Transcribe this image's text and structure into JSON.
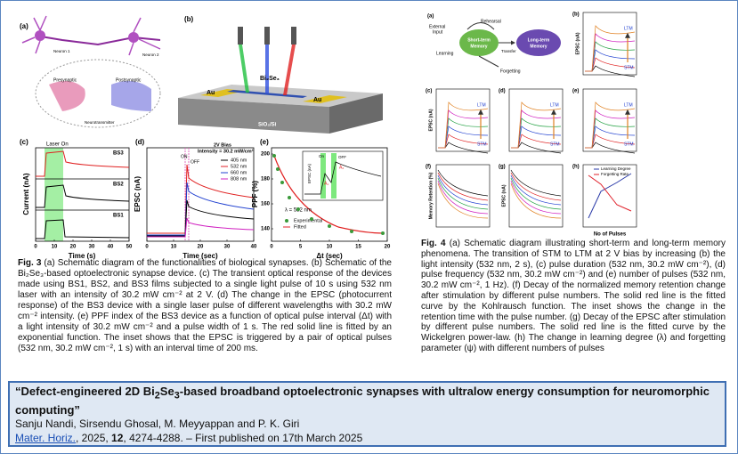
{
  "fig3": {
    "a": {
      "label": "(a)",
      "neuron1": "Neuron 1",
      "neuron2": "Neuron 2",
      "pre": "Presynaptic",
      "post": "Postsynaptic",
      "neuro": "Neurotransmitter"
    },
    "b": {
      "label": "(b)",
      "material": "Bi₂Se₃",
      "electrode": "Au",
      "substrate": "SiO₂/Si"
    },
    "c": {
      "label": "(c)",
      "laser": "Laser On",
      "ylabel": "Current (nA)",
      "xlabel": "Time (s)",
      "samples": [
        "BS3",
        "BS2",
        "BS1"
      ],
      "xlim": [
        0,
        50
      ],
      "xticks": [
        0,
        10,
        20,
        30,
        40,
        50
      ]
    },
    "d": {
      "label": "(d)",
      "bias": "2V Bias",
      "intensity": "Intensity = 30.2 mW/cm²",
      "on": "ON",
      "off": "OFF",
      "ylabel": "EPSC (nA)",
      "xlabel": "Time (sec)",
      "xlim": [
        0,
        40
      ],
      "xticks": [
        0,
        10,
        20,
        30,
        40
      ],
      "series": [
        {
          "name": "405 nm",
          "color": "#000000"
        },
        {
          "name": "532 nm",
          "color": "#e0202a"
        },
        {
          "name": "660 nm",
          "color": "#2040d0"
        },
        {
          "name": "808 nm",
          "color": "#d020c0"
        }
      ]
    },
    "e": {
      "label": "(e)",
      "ylabel": "PPF (%)",
      "xlabel": "Δt (sec)",
      "wavelength": "λ = 532 nm",
      "inset_ylabel": "EPSC (nA)",
      "a1": "A₁",
      "a2": "A₂",
      "on": "On",
      "off": "OFF",
      "xlim": [
        0,
        20
      ],
      "xticks": [
        0,
        5,
        10,
        15,
        20
      ],
      "ylim": [
        130,
        205
      ],
      "yticks": [
        140,
        160,
        180,
        200
      ],
      "series": [
        {
          "name": "Experimental",
          "color": "#3a9a3a"
        },
        {
          "name": "Fitted",
          "color": "#e0202a"
        }
      ]
    },
    "caption": {
      "label": "Fig. 3",
      "text": " (a) Schematic diagram of the functionalities of biological synapses. (b) Schematic of the Bi₂Se₃-based optoelectronic synapse device. (c) The transient optical response of the devices made using BS1, BS2, and BS3 films subjected to a single light pulse of 10 s using 532 nm laser with an intensity of 30.2 mW cm⁻² at 2 V. (d) The change in the EPSC (photocurrent response) of the BS3 device with a single laser pulse of different wavelengths with 30.2 mW cm⁻² intensity. (e) PPF index of the BS3 device as a function of optical pulse interval (Δt) with a light intensity of 30.2 mW cm⁻² and a pulse width of 1 s. The red solid line is fitted by an exponential function. The inset shows that the EPSC is triggered by a pair of optical pulses (532 nm, 30.2 mW cm⁻², 1 s) with an interval time of 200 ms."
    }
  },
  "fig4": {
    "a": {
      "label": "(a)",
      "external": "External",
      "input": "Input",
      "rehearsal": "Rehearsal",
      "stm1": "Short-term",
      "stm2": "Memory",
      "ltm1": "Long-term",
      "ltm2": "Memory",
      "transfer": "Transfer",
      "learning": "Learning",
      "forgetting": "Forgetting"
    },
    "b": {
      "label": "(b)",
      "ylabel": "EPSC (nA)",
      "ltm": "LTM",
      "stm": "STM"
    },
    "c": {
      "label": "(c)",
      "ylabel": "EPSC (nA)",
      "ltm": "LTM",
      "stm": "STM"
    },
    "d": {
      "label": "(d)",
      "ltm": "LTM",
      "stm": "STM"
    },
    "e": {
      "label": "(e)",
      "ltm": "LTM",
      "stm": "STM"
    },
    "f": {
      "label": "(f)",
      "ylabel": "Memory Retention (%)"
    },
    "g": {
      "label": "(g)",
      "ylabel": "EPSC (nA)"
    },
    "h": {
      "label": "(h)",
      "xlabel": "No of Pulses",
      "series": [
        {
          "name": "Learning Degree",
          "color": "#2a3aa8"
        },
        {
          "name": "Forgetting Rate",
          "color": "#e0202a"
        }
      ]
    },
    "caption": {
      "label": "Fig. 4",
      "text": " (a) Schematic diagram illustrating short-term and long-term memory phenomena. The transition of STM to LTM at 2 V bias by increasing (b) the light intensity (532 nm, 2 s), (c) pulse duration (532 nm, 30.2 mW cm⁻²), (d) pulse frequency (532 nm, 30.2 mW cm⁻²) and (e) number of pulses (532 nm, 30.2 mW cm⁻², 1 Hz). (f) Decay of the normalized memory retention change after stimulation by different pulse numbers. The solid red line is the fitted curve by the Kohlrausch function. The inset shows the change in the retention time with the pulse number. (g) Decay of the EPSC after stimulation by different pulse numbers. The solid red line is the fitted curve by the Wickelgren power-law. (h) The change in learning degree (λ) and forgetting parameter (ψ) with different numbers of pulses"
    }
  },
  "citation": {
    "title": [
      "“Defect-engineered 2D Bi",
      "2",
      "Se",
      "3",
      "-based broadband optoelectronic synapses with ultralow energy consumption for neuromorphic computing”"
    ],
    "authors": "Sanju Nandi, Sirsendu Ghosal, M. Meyyappan and P. K. Giri",
    "journal": "Mater. Horiz.",
    "year": ", 2025, ",
    "volume": "12",
    "rest": ", 4274-4288. – First published on 17th March 2025"
  }
}
